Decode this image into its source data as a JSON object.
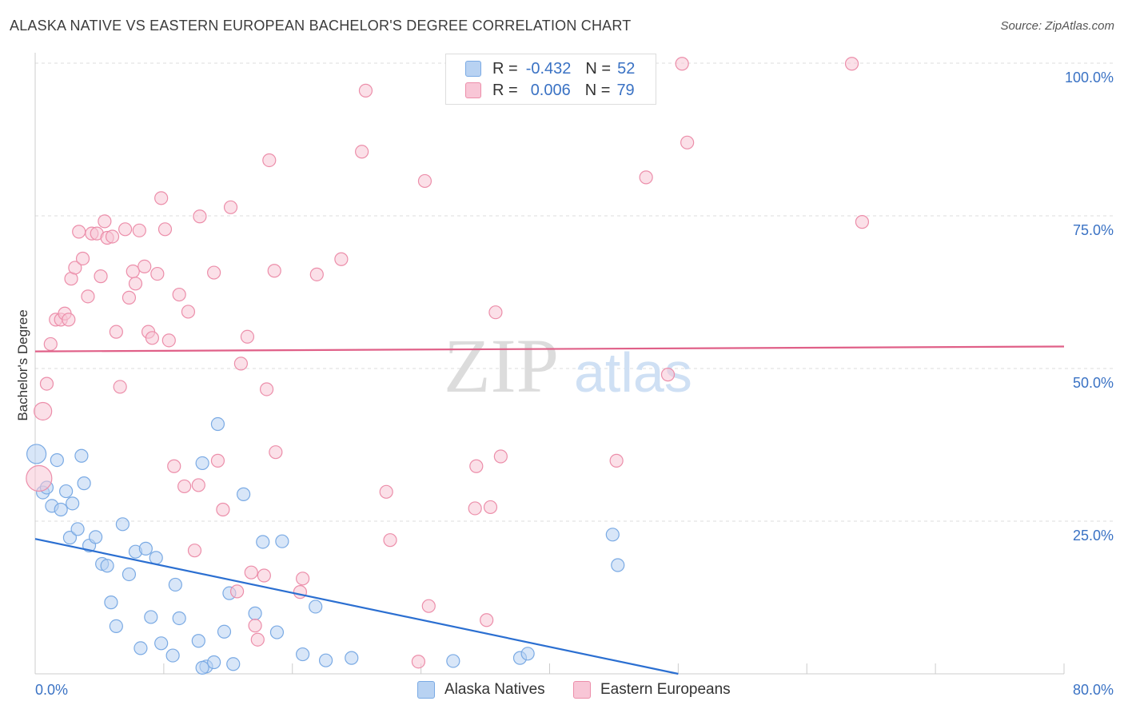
{
  "title": "ALASKA NATIVE VS EASTERN EUROPEAN BACHELOR'S DEGREE CORRELATION CHART",
  "source": "Source: ZipAtlas.com",
  "watermark": {
    "zip": "ZIP",
    "atlas": "atlas"
  },
  "legend": {
    "r_label": "R =",
    "n_label": "N =",
    "series": [
      {
        "name": "Alaska Natives",
        "r": "-0.432",
        "n": "52",
        "color": "#7aaae4",
        "fill": "#b8d2f2"
      },
      {
        "name": "Eastern Europeans",
        "r": "0.006",
        "n": "79",
        "color": "#ec8eaa",
        "fill": "#f8c6d6"
      }
    ]
  },
  "colors": {
    "blue_line": "#2b6fd1",
    "pink_line": "#e06088",
    "grid": "#dddddd",
    "tick_label": "#3a72c4"
  },
  "chart_data": {
    "type": "scatter",
    "title": "ALASKA NATIVE VS EASTERN EUROPEAN BACHELOR'S DEGREE CORRELATION CHART",
    "xlabel": "",
    "ylabel": "Bachelor's Degree",
    "xlim": [
      0,
      80
    ],
    "ylim": [
      0,
      100
    ],
    "x_tick_labels": [
      "0.0%",
      "80.0%"
    ],
    "y_ticks": [
      25,
      50,
      75,
      100
    ],
    "y_tick_labels": [
      "25.0%",
      "50.0%",
      "75.0%",
      "100.0%"
    ],
    "grid": true,
    "series": [
      {
        "name": "Alaska Natives",
        "trend": {
          "x": [
            0,
            50
          ],
          "y": [
            22.1,
            0
          ]
        },
        "points": [
          {
            "x": 0.1,
            "y": 36.0,
            "s": 12
          },
          {
            "x": 0.6,
            "y": 29.7
          },
          {
            "x": 0.9,
            "y": 30.5
          },
          {
            "x": 1.3,
            "y": 27.5
          },
          {
            "x": 1.7,
            "y": 35.0
          },
          {
            "x": 2.0,
            "y": 26.9
          },
          {
            "x": 2.4,
            "y": 29.9
          },
          {
            "x": 2.7,
            "y": 22.3
          },
          {
            "x": 2.9,
            "y": 27.9
          },
          {
            "x": 3.3,
            "y": 23.7
          },
          {
            "x": 3.6,
            "y": 35.7
          },
          {
            "x": 3.8,
            "y": 31.2
          },
          {
            "x": 4.2,
            "y": 21.0
          },
          {
            "x": 4.7,
            "y": 22.4
          },
          {
            "x": 5.2,
            "y": 18.0
          },
          {
            "x": 5.6,
            "y": 17.7
          },
          {
            "x": 5.9,
            "y": 11.7
          },
          {
            "x": 6.3,
            "y": 7.8
          },
          {
            "x": 6.8,
            "y": 24.5
          },
          {
            "x": 7.3,
            "y": 16.3
          },
          {
            "x": 7.8,
            "y": 20.0
          },
          {
            "x": 8.2,
            "y": 4.2
          },
          {
            "x": 8.6,
            "y": 20.5
          },
          {
            "x": 9.0,
            "y": 9.3
          },
          {
            "x": 9.4,
            "y": 19.0
          },
          {
            "x": 9.8,
            "y": 5.0
          },
          {
            "x": 10.7,
            "y": 3.0
          },
          {
            "x": 10.9,
            "y": 14.6
          },
          {
            "x": 11.2,
            "y": 9.1
          },
          {
            "x": 12.7,
            "y": 5.4
          },
          {
            "x": 13.0,
            "y": 34.5
          },
          {
            "x": 13.3,
            "y": 1.2
          },
          {
            "x": 13.9,
            "y": 1.9
          },
          {
            "x": 14.2,
            "y": 40.9
          },
          {
            "x": 14.7,
            "y": 6.9
          },
          {
            "x": 15.1,
            "y": 13.2
          },
          {
            "x": 15.4,
            "y": 1.6
          },
          {
            "x": 16.2,
            "y": 29.4
          },
          {
            "x": 17.1,
            "y": 9.9
          },
          {
            "x": 17.7,
            "y": 21.6
          },
          {
            "x": 18.8,
            "y": 6.8
          },
          {
            "x": 19.2,
            "y": 21.7
          },
          {
            "x": 20.8,
            "y": 3.2
          },
          {
            "x": 21.8,
            "y": 11.0
          },
          {
            "x": 22.6,
            "y": 2.2
          },
          {
            "x": 24.6,
            "y": 2.6
          },
          {
            "x": 32.5,
            "y": 2.1
          },
          {
            "x": 37.7,
            "y": 2.6
          },
          {
            "x": 38.3,
            "y": 3.3
          },
          {
            "x": 44.9,
            "y": 22.8
          },
          {
            "x": 45.3,
            "y": 17.8
          },
          {
            "x": 13.0,
            "y": 1.0
          }
        ]
      },
      {
        "name": "Eastern Europeans",
        "trend": {
          "x": [
            0,
            80
          ],
          "y": [
            52.8,
            53.6
          ]
        },
        "points": [
          {
            "x": 0.3,
            "y": 32.0,
            "s": 16
          },
          {
            "x": 0.6,
            "y": 43.0,
            "s": 11
          },
          {
            "x": 0.9,
            "y": 47.5
          },
          {
            "x": 1.2,
            "y": 54.0
          },
          {
            "x": 1.6,
            "y": 58.0
          },
          {
            "x": 2.0,
            "y": 58.0
          },
          {
            "x": 2.3,
            "y": 59.0
          },
          {
            "x": 2.6,
            "y": 58.0
          },
          {
            "x": 2.8,
            "y": 64.7
          },
          {
            "x": 3.1,
            "y": 66.5
          },
          {
            "x": 3.4,
            "y": 72.4
          },
          {
            "x": 3.7,
            "y": 68.0
          },
          {
            "x": 4.1,
            "y": 61.8
          },
          {
            "x": 4.4,
            "y": 72.1
          },
          {
            "x": 4.8,
            "y": 72.1
          },
          {
            "x": 5.1,
            "y": 65.1
          },
          {
            "x": 5.4,
            "y": 74.1
          },
          {
            "x": 5.6,
            "y": 71.4
          },
          {
            "x": 6.0,
            "y": 71.6
          },
          {
            "x": 6.3,
            "y": 56.0
          },
          {
            "x": 6.6,
            "y": 47.0
          },
          {
            "x": 7.0,
            "y": 72.8
          },
          {
            "x": 7.3,
            "y": 61.6
          },
          {
            "x": 7.6,
            "y": 65.9
          },
          {
            "x": 7.8,
            "y": 63.9
          },
          {
            "x": 8.1,
            "y": 72.6
          },
          {
            "x": 8.5,
            "y": 66.7
          },
          {
            "x": 8.8,
            "y": 56.0
          },
          {
            "x": 9.1,
            "y": 55.0
          },
          {
            "x": 9.5,
            "y": 65.5
          },
          {
            "x": 9.8,
            "y": 77.9
          },
          {
            "x": 10.1,
            "y": 72.8
          },
          {
            "x": 10.4,
            "y": 54.6
          },
          {
            "x": 10.8,
            "y": 34.0
          },
          {
            "x": 11.2,
            "y": 62.1
          },
          {
            "x": 11.6,
            "y": 30.7
          },
          {
            "x": 11.9,
            "y": 59.3
          },
          {
            "x": 12.4,
            "y": 20.2
          },
          {
            "x": 12.7,
            "y": 30.9
          },
          {
            "x": 12.8,
            "y": 74.9
          },
          {
            "x": 13.9,
            "y": 65.7
          },
          {
            "x": 14.2,
            "y": 34.9
          },
          {
            "x": 14.6,
            "y": 26.9
          },
          {
            "x": 15.2,
            "y": 76.4
          },
          {
            "x": 15.7,
            "y": 13.5
          },
          {
            "x": 16.0,
            "y": 50.8
          },
          {
            "x": 16.5,
            "y": 55.2
          },
          {
            "x": 16.8,
            "y": 16.6
          },
          {
            "x": 17.1,
            "y": 7.9
          },
          {
            "x": 17.3,
            "y": 5.6
          },
          {
            "x": 17.8,
            "y": 16.1
          },
          {
            "x": 18.0,
            "y": 46.6
          },
          {
            "x": 18.2,
            "y": 84.1
          },
          {
            "x": 18.6,
            "y": 66.0
          },
          {
            "x": 18.7,
            "y": 36.3
          },
          {
            "x": 20.6,
            "y": 13.4
          },
          {
            "x": 20.8,
            "y": 15.6
          },
          {
            "x": 21.9,
            "y": 65.4
          },
          {
            "x": 23.8,
            "y": 67.9
          },
          {
            "x": 25.4,
            "y": 85.5
          },
          {
            "x": 25.7,
            "y": 95.5
          },
          {
            "x": 27.3,
            "y": 29.8
          },
          {
            "x": 27.6,
            "y": 21.9
          },
          {
            "x": 29.8,
            "y": 2.0
          },
          {
            "x": 30.3,
            "y": 80.7
          },
          {
            "x": 30.6,
            "y": 11.1
          },
          {
            "x": 34.2,
            "y": 27.1
          },
          {
            "x": 34.3,
            "y": 34.0
          },
          {
            "x": 35.1,
            "y": 8.8
          },
          {
            "x": 35.4,
            "y": 27.3
          },
          {
            "x": 35.8,
            "y": 59.2
          },
          {
            "x": 36.2,
            "y": 35.6
          },
          {
            "x": 45.2,
            "y": 34.9
          },
          {
            "x": 47.5,
            "y": 81.3
          },
          {
            "x": 49.2,
            "y": 49.0
          },
          {
            "x": 50.3,
            "y": 99.9
          },
          {
            "x": 50.7,
            "y": 87.0
          },
          {
            "x": 63.5,
            "y": 99.9
          },
          {
            "x": 64.3,
            "y": 74.0
          }
        ]
      }
    ]
  }
}
